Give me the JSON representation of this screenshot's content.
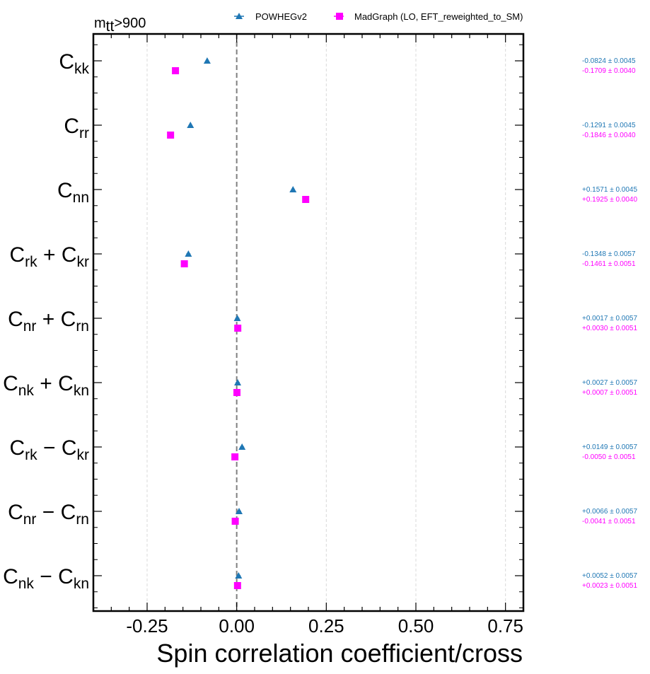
{
  "chart_data": {
    "type": "scatter",
    "orientation": "horizontal",
    "top_label_main": "m",
    "top_label_sub": "tt",
    "top_label_rest": ">900",
    "xlabel": "Spin correlation coefficient/cross",
    "xlim": [
      -0.4,
      0.8
    ],
    "xticks": [
      -0.25,
      0.0,
      0.25,
      0.5,
      0.75
    ],
    "xtick_labels": [
      "-0.25",
      "0.00",
      "0.25",
      "0.50",
      "0.75"
    ],
    "grid": "vertical dashed",
    "reference_line": 0.0,
    "legend_position": "top",
    "categories": [
      {
        "main": "C",
        "sub1": "kk",
        "op": "",
        "sub2": ""
      },
      {
        "main": "C",
        "sub1": "rr",
        "op": "",
        "sub2": ""
      },
      {
        "main": "C",
        "sub1": "nn",
        "op": "",
        "sub2": ""
      },
      {
        "main": "C",
        "sub1": "rk",
        "op": "+",
        "sub2": "kr"
      },
      {
        "main": "C",
        "sub1": "nr",
        "op": "+",
        "sub2": "rn"
      },
      {
        "main": "C",
        "sub1": "nk",
        "op": "+",
        "sub2": "kn"
      },
      {
        "main": "C",
        "sub1": "rk",
        "op": "−",
        "sub2": "kr"
      },
      {
        "main": "C",
        "sub1": "nr",
        "op": "−",
        "sub2": "rn"
      },
      {
        "main": "C",
        "sub1": "nk",
        "op": "−",
        "sub2": "kn"
      }
    ],
    "series": [
      {
        "name": "POWHEGv2",
        "color": "#1f77b4",
        "marker": "triangle",
        "values": [
          -0.0824,
          -0.1291,
          0.1571,
          -0.1348,
          0.0017,
          0.0027,
          0.0149,
          0.0066,
          0.0052
        ],
        "errors": [
          0.0045,
          0.0045,
          0.0045,
          0.0057,
          0.0057,
          0.0057,
          0.0057,
          0.0057,
          0.0057
        ],
        "labels": [
          "-0.0824 ± 0.0045",
          "-0.1291 ± 0.0045",
          "+0.1571 ± 0.0045",
          "-0.1348 ± 0.0057",
          "+0.0017 ± 0.0057",
          "+0.0027 ± 0.0057",
          "+0.0149 ± 0.0057",
          "+0.0066 ± 0.0057",
          "+0.0052 ± 0.0057"
        ]
      },
      {
        "name": "MadGraph (LO, EFT_reweighted_to_SM)",
        "color": "#ff00ff",
        "marker": "square",
        "values": [
          -0.1709,
          -0.1846,
          0.1925,
          -0.1461,
          0.003,
          0.0007,
          -0.005,
          -0.0041,
          0.0023
        ],
        "errors": [
          0.004,
          0.004,
          0.004,
          0.0051,
          0.0051,
          0.0051,
          0.0051,
          0.0051,
          0.0051
        ],
        "labels": [
          "-0.1709 ± 0.0040",
          "-0.1846 ± 0.0040",
          "+0.1925 ± 0.0040",
          "-0.1461 ± 0.0051",
          "+0.0030 ± 0.0051",
          "+0.0007 ± 0.0051",
          "-0.0050 ± 0.0051",
          "-0.0041 ± 0.0051",
          "+0.0023 ± 0.0051"
        ]
      }
    ]
  }
}
